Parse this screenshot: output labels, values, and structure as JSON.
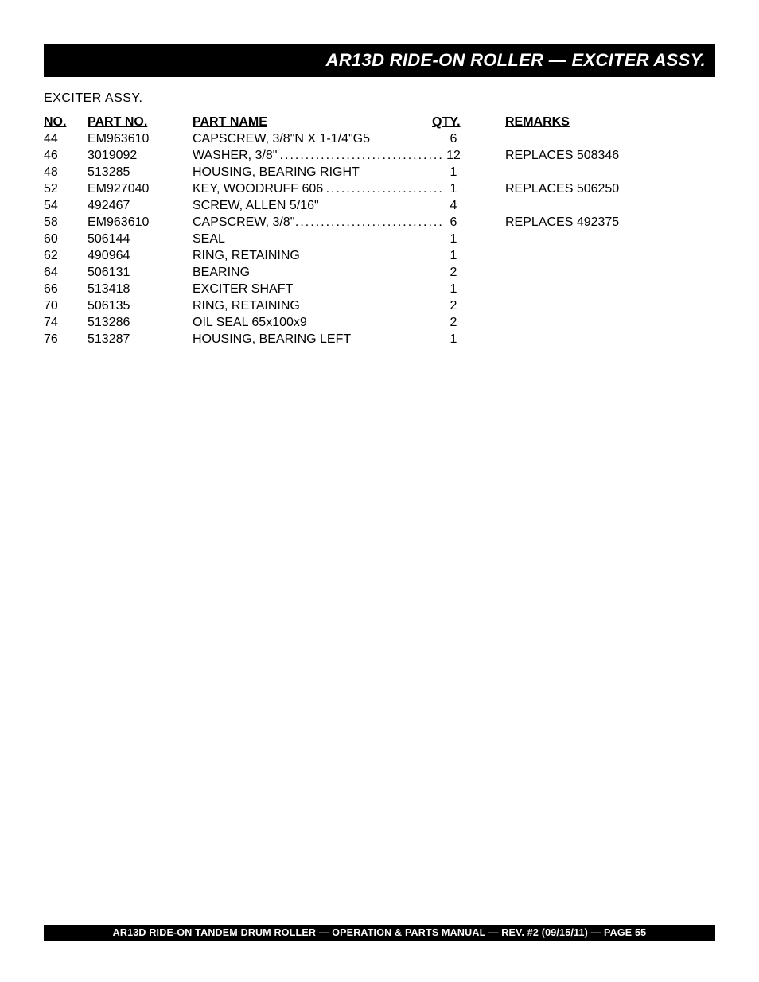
{
  "title_bar": "AR13D RIDE-ON ROLLER — EXCITER ASSY.",
  "subtitle": "EXCITER  ASSY.",
  "headers": {
    "no": "NO.",
    "part_no": "PART NO.",
    "part_name": "PART NAME",
    "qty": "QTY.",
    "remarks": "REMARKS"
  },
  "rows": [
    {
      "no": "44",
      "part": "EM963610",
      "name": "CAPSCREW, 3/8\"N X 1-1/4\"G5",
      "qty": "6",
      "rem": "",
      "dotted": false
    },
    {
      "no": "46",
      "part": "3019092",
      "name": "WASHER, 3/8\"",
      "qty": "12",
      "rem": "REPLACES 508346",
      "dotted": true
    },
    {
      "no": "48",
      "part": "513285",
      "name": "HOUSING, BEARING RIGHT",
      "qty": "1",
      "rem": "",
      "dotted": false
    },
    {
      "no": "52",
      "part": "EM927040",
      "name": "KEY, WOODRUFF 606",
      "qty": "1",
      "rem": "REPLACES 506250",
      "dotted": true
    },
    {
      "no": "54",
      "part": "492467",
      "name": "SCREW, ALLEN 5/16\"",
      "qty": "4",
      "rem": "",
      "dotted": false
    },
    {
      "no": "58",
      "part": "EM963610",
      "name": "CAPSCREW, 3/8\"",
      "qty": "6",
      "rem": "REPLACES 492375",
      "dotted": true
    },
    {
      "no": "60",
      "part": "506144",
      "name": "SEAL",
      "qty": "1",
      "rem": "",
      "dotted": false
    },
    {
      "no": "62",
      "part": "490964",
      "name": "RING, RETAINING",
      "qty": "1",
      "rem": "",
      "dotted": false
    },
    {
      "no": "64",
      "part": "506131",
      "name": "BEARING",
      "qty": "2",
      "rem": "",
      "dotted": false
    },
    {
      "no": "66",
      "part": "513418",
      "name": "EXCITER SHAFT",
      "qty": "1",
      "rem": "",
      "dotted": false
    },
    {
      "no": "70",
      "part": "506135",
      "name": "RING, RETAINING",
      "qty": "2",
      "rem": "",
      "dotted": false
    },
    {
      "no": "74",
      "part": "513286",
      "name": "OIL SEAL 65x100x9",
      "qty": "2",
      "rem": "",
      "dotted": false
    },
    {
      "no": "76",
      "part": "513287",
      "name": "HOUSING, BEARING LEFT",
      "qty": "1",
      "rem": "",
      "dotted": false
    }
  ],
  "footer": "AR13D RIDE-ON TANDEM DRUM ROLLER — OPERATION & PARTS MANUAL — REV. #2  (09/15/11) — PAGE 55",
  "colors": {
    "bar_bg": "#000000",
    "bar_fg": "#ffffff",
    "page_bg": "#ffffff",
    "text": "#000000"
  },
  "fontsizes": {
    "title": 22,
    "body": 16,
    "footer": 12.5
  }
}
